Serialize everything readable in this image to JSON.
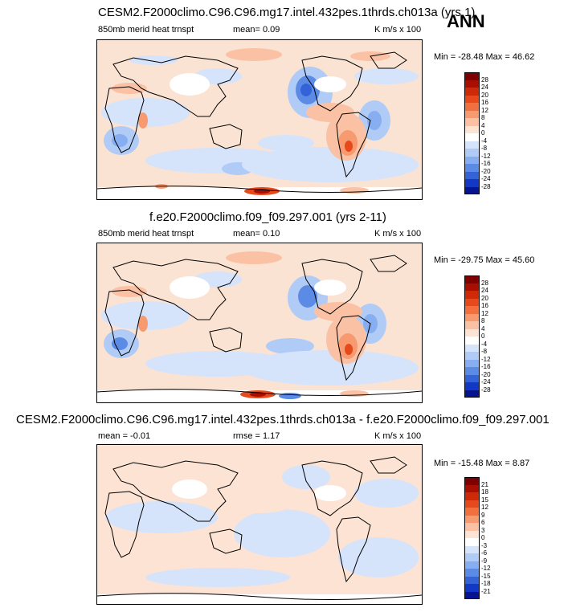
{
  "season": "ANN",
  "panels": [
    {
      "title": "CESM2.F2000climo.C96.C96.mg17.intel.432pes.1thrds.ch013a (yrs 1)",
      "left_label": "850mb merid heat trnspt",
      "stat_label": "mean=  0.09",
      "units": "K m/s x 100",
      "minmax": "Min = -28.48 Max = 46.62",
      "levels": [
        "28",
        "24",
        "20",
        "16",
        "12",
        "8",
        "4",
        "0",
        "-4",
        "-8",
        "-12",
        "-16",
        "-20",
        "-24",
        "-28"
      ]
    },
    {
      "title": "f.e20.F2000climo.f09_f09.297.001 (yrs 2-11)",
      "left_label": "850mb merid heat trnspt",
      "stat_label": "mean=  0.10",
      "units": "K m/s x 100",
      "minmax": "Min = -29.75 Max =  45.60",
      "levels": [
        "28",
        "24",
        "20",
        "16",
        "12",
        "8",
        "4",
        "0",
        "-4",
        "-8",
        "-12",
        "-16",
        "-20",
        "-24",
        "-28"
      ]
    },
    {
      "title": "CESM2.F2000climo.C96.C96.mg17.intel.432pes.1thrds.ch013a - f.e20.F2000climo.f09_f09.297.001",
      "left_label": "mean = -0.01",
      "stat_label": "rmse =  1.17",
      "units": "K m/s x 100",
      "minmax": "Min = -15.48 Max =  8.87",
      "levels": [
        "21",
        "18",
        "15",
        "12",
        "9",
        "6",
        "3",
        "0",
        "-3",
        "-6",
        "-9",
        "-12",
        "-15",
        "-18",
        "-21"
      ]
    }
  ],
  "colormap": [
    "#7f0000",
    "#a80f00",
    "#cf2a08",
    "#e64a1c",
    "#f27040",
    "#f89a70",
    "#fbc1a4",
    "#fde3d4",
    "#ffffff",
    "#d5e3fb",
    "#b0ccf6",
    "#86aef0",
    "#5c8be6",
    "#3463d8",
    "#1338c4",
    "#06158f",
    "#000070"
  ],
  "chart_data": [
    {
      "type": "heatmap",
      "title": "CESM2.F2000climo.C96.C96.mg17.intel.432pes.1thrds.ch013a (yrs 1)",
      "variable": "850mb merid heat trnspt",
      "units": "K m/s x 100",
      "mean": 0.09,
      "min": -28.48,
      "max": 46.62,
      "contour_levels": [
        -28,
        -24,
        -20,
        -16,
        -12,
        -8,
        -4,
        0,
        4,
        8,
        12,
        16,
        20,
        24,
        28
      ]
    },
    {
      "type": "heatmap",
      "title": "f.e20.F2000climo.f09_f09.297.001 (yrs 2-11)",
      "variable": "850mb merid heat trnspt",
      "units": "K m/s x 100",
      "mean": 0.1,
      "min": -29.75,
      "max": 45.6,
      "contour_levels": [
        -28,
        -24,
        -20,
        -16,
        -12,
        -8,
        -4,
        0,
        4,
        8,
        12,
        16,
        20,
        24,
        28
      ]
    },
    {
      "type": "heatmap",
      "title": "CESM2.F2000climo.C96.C96.mg17.intel.432pes.1thrds.ch013a - f.e20.F2000climo.f09_f09.297.001",
      "units": "K m/s x 100",
      "mean": -0.01,
      "rmse": 1.17,
      "min": -15.48,
      "max": 8.87,
      "contour_levels": [
        -21,
        -18,
        -15,
        -12,
        -9,
        -6,
        -3,
        0,
        3,
        6,
        9,
        12,
        15,
        18,
        21
      ]
    }
  ]
}
